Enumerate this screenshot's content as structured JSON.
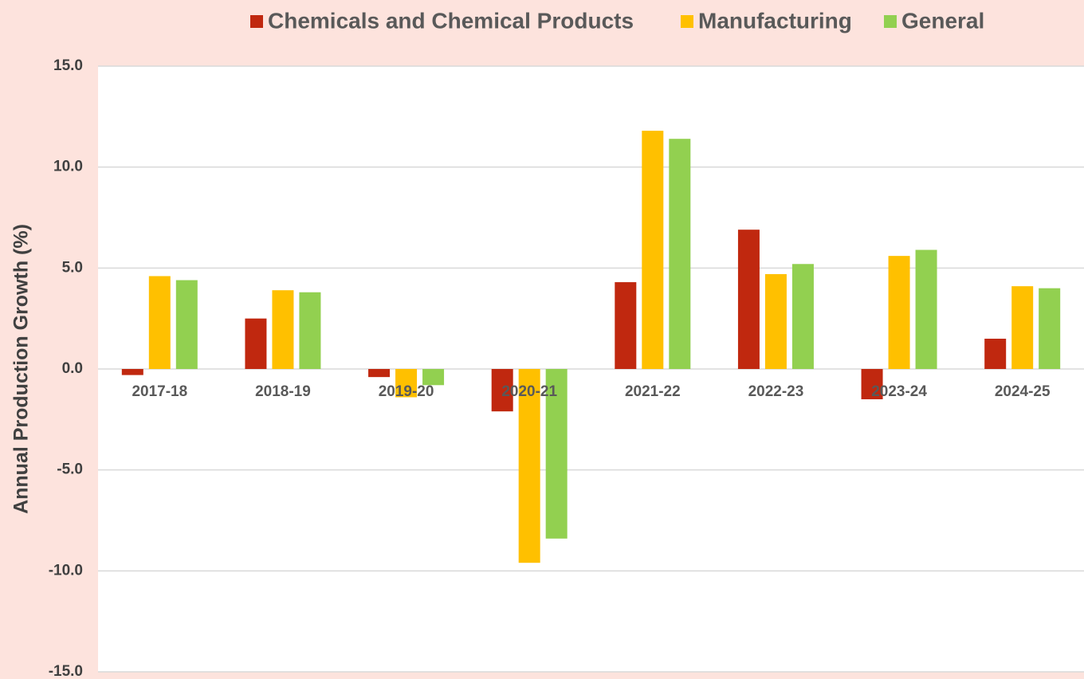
{
  "chart_data": {
    "type": "bar",
    "y_label": "Annual Production Growth (%)",
    "categories": [
      "2017-18",
      "2018-19",
      "2019-20",
      "2020-21",
      "2021-22",
      "2022-23",
      "2023-24",
      "2024-25"
    ],
    "series": [
      {
        "name": "Chemicals and Chemical Products",
        "color": "#c0280f",
        "values": [
          -0.3,
          2.5,
          -0.4,
          -2.1,
          4.3,
          6.9,
          -1.5,
          1.5
        ]
      },
      {
        "name": "Manufacturing",
        "color": "#ffc000",
        "values": [
          4.6,
          3.9,
          -1.4,
          -9.6,
          11.8,
          4.7,
          5.6,
          4.1
        ]
      },
      {
        "name": "General",
        "color": "#92d050",
        "values": [
          4.4,
          3.8,
          -0.8,
          -8.4,
          11.4,
          5.2,
          5.9,
          4.0
        ]
      }
    ],
    "ylim": [
      -15,
      15
    ],
    "yticks": [
      {
        "value": -15,
        "label": "-15.0"
      },
      {
        "value": -10,
        "label": "-10.0"
      },
      {
        "value": -5,
        "label": "-5.0"
      },
      {
        "value": 0,
        "label": "0.0"
      },
      {
        "value": 5,
        "label": "5.0"
      },
      {
        "value": 10,
        "label": "10.0"
      },
      {
        "value": 15,
        "label": "15.0"
      }
    ],
    "grid": true,
    "legend": "top"
  }
}
